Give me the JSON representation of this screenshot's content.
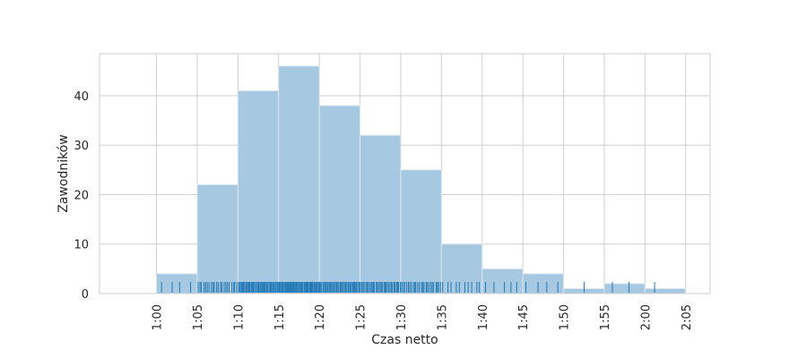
{
  "chart_data": {
    "type": "bar",
    "style": "histogram-with-rugplot",
    "xlabel": "Czas netto",
    "ylabel": "Zawodników",
    "bin_edges_minutes": [
      60,
      65,
      70,
      75,
      80,
      85,
      90,
      95,
      100,
      105,
      110,
      115,
      120,
      125
    ],
    "values": [
      4,
      22,
      41,
      46,
      38,
      32,
      25,
      10,
      5,
      4,
      1,
      2,
      1
    ],
    "xlim_minutes": [
      53,
      128
    ],
    "ylim": [
      0,
      48.5
    ],
    "x_ticks": [
      {
        "value": 60,
        "label": "1:00"
      },
      {
        "value": 65,
        "label": "1:05"
      },
      {
        "value": 70,
        "label": "1:10"
      },
      {
        "value": 75,
        "label": "1:15"
      },
      {
        "value": 80,
        "label": "1:20"
      },
      {
        "value": 85,
        "label": "1:25"
      },
      {
        "value": 90,
        "label": "1:30"
      },
      {
        "value": 95,
        "label": "1:35"
      },
      {
        "value": 100,
        "label": "1:40"
      },
      {
        "value": 105,
        "label": "1:45"
      },
      {
        "value": 110,
        "label": "1:50"
      },
      {
        "value": 115,
        "label": "1:55"
      },
      {
        "value": 120,
        "label": "2:00"
      },
      {
        "value": 125,
        "label": "2:05"
      }
    ],
    "y_ticks": [
      {
        "value": 0,
        "label": "0"
      },
      {
        "value": 10,
        "label": "10"
      },
      {
        "value": 20,
        "label": "20"
      },
      {
        "value": 30,
        "label": "30"
      },
      {
        "value": 40,
        "label": "40"
      }
    ],
    "grid": true,
    "legend": "none",
    "colors": {
      "bar_fill": "#a6c8e1",
      "bar_edge": "#dbe7f1",
      "rug": "#1f77b4",
      "grid": "#cfcfcf",
      "frame": "#cfcfcf",
      "text": "#262626"
    }
  }
}
